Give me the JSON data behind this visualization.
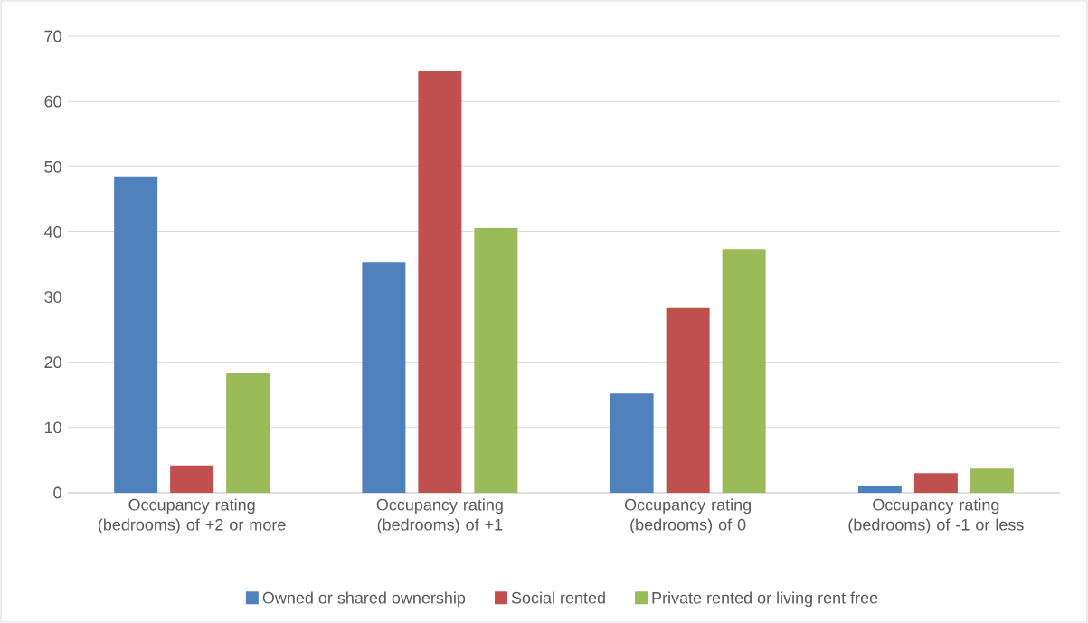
{
  "chart_data": {
    "type": "bar",
    "categories": [
      "Occupancy rating (bedrooms) of +2 or more",
      "Occupancy rating (bedrooms) of +1",
      "Occupancy rating (bedrooms) of 0",
      "Occupancy rating (bedrooms) of -1 or less"
    ],
    "series": [
      {
        "name": "Owned or shared ownership",
        "color": "#4f81bd",
        "values": [
          48.4,
          35.3,
          15.2,
          1.0
        ]
      },
      {
        "name": "Social rented",
        "color": "#c0504d",
        "values": [
          4.2,
          64.7,
          28.3,
          3.0
        ]
      },
      {
        "name": "Private rented or living rent free",
        "color": "#9bbb59",
        "values": [
          18.3,
          40.6,
          37.4,
          3.7
        ]
      }
    ],
    "ylim": [
      0,
      70
    ],
    "yticks": [
      0,
      10,
      20,
      30,
      40,
      50,
      60,
      70
    ],
    "grid": "y",
    "legend": "bottom"
  }
}
